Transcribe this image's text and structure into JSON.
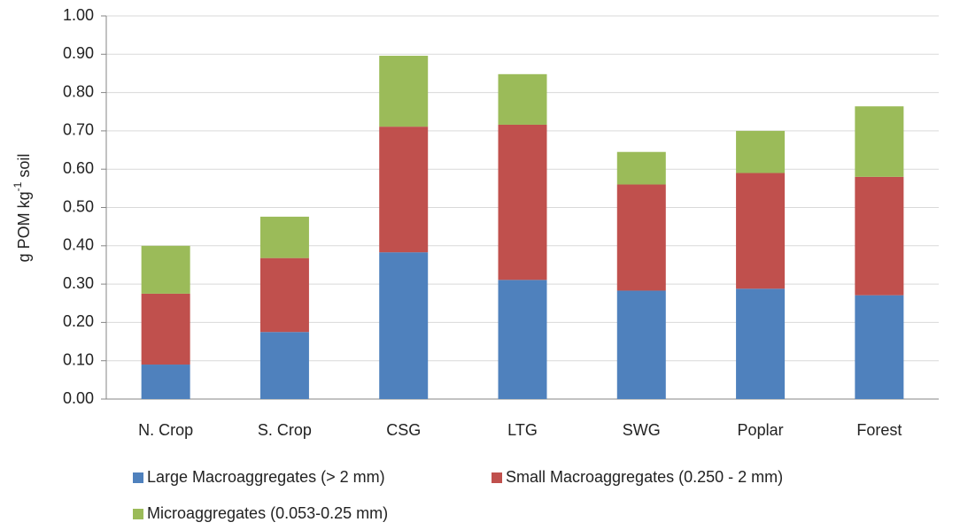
{
  "chart_data": {
    "type": "stacked_bar",
    "y_label": [
      "g POM kg",
      "-1",
      " soil"
    ],
    "categories": [
      "N. Crop",
      "S. Crop",
      "CSG",
      "LTG",
      "SWG",
      "Poplar",
      "Forest"
    ],
    "series": [
      {
        "name": "Large Macroaggregates (> 2 mm)",
        "color": "#4f81bd",
        "values": [
          0.09,
          0.175,
          0.383,
          0.311,
          0.283,
          0.288,
          0.271
        ]
      },
      {
        "name": "Small Macroaggregates (0.250 - 2 mm)",
        "color": "#c0504d",
        "values": [
          0.185,
          0.193,
          0.328,
          0.405,
          0.277,
          0.302,
          0.309
        ]
      },
      {
        "name": "Microaggregates (0.053-0.25 mm)",
        "color": "#9bbb59",
        "values": [
          0.125,
          0.108,
          0.185,
          0.132,
          0.085,
          0.11,
          0.184
        ]
      }
    ],
    "ylim": [
      0,
      1
    ],
    "yticks": [
      {
        "value": 0,
        "label": "0.00"
      },
      {
        "value": 0.1,
        "label": "0.10"
      },
      {
        "value": 0.2,
        "label": "0.20"
      },
      {
        "value": 0.3,
        "label": "0.30"
      },
      {
        "value": 0.4,
        "label": "0.40"
      },
      {
        "value": 0.5,
        "label": "0.50"
      },
      {
        "value": 0.6,
        "label": "0.60"
      },
      {
        "value": 0.7,
        "label": "0.70"
      },
      {
        "value": 0.8,
        "label": "0.80"
      },
      {
        "value": 0.9,
        "label": "0.90"
      },
      {
        "value": 1,
        "label": "1.00"
      }
    ],
    "grid": true
  }
}
